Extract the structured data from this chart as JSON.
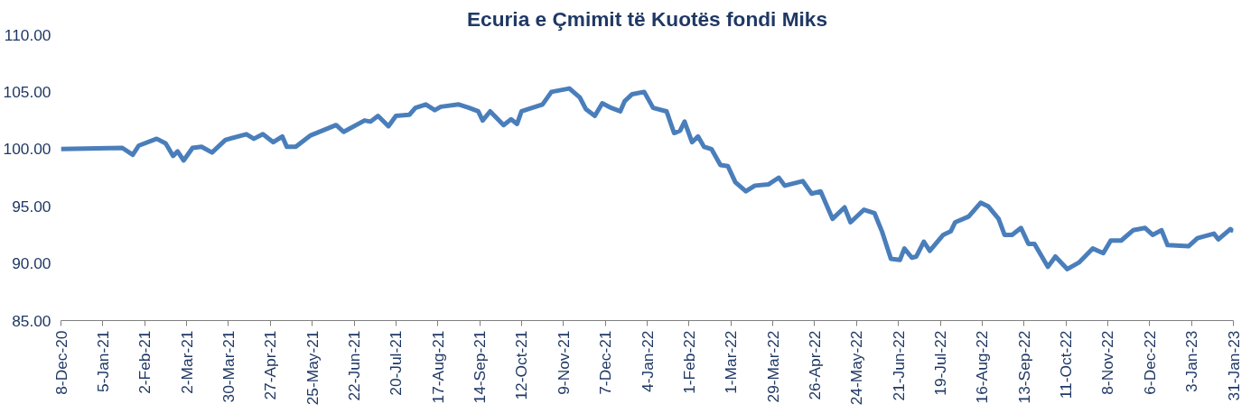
{
  "chart_data": {
    "type": "line",
    "title": "Ecuria e Çmimit të Kuotës fondi Miks",
    "x": [
      "2020-12-08",
      "2021-01-18",
      "2021-01-25",
      "2021-01-29",
      "2021-02-10",
      "2021-02-16",
      "2021-02-21",
      "2021-02-24",
      "2021-02-28",
      "2021-03-06",
      "2021-03-12",
      "2021-03-19",
      "2021-03-28",
      "2021-04-11",
      "2021-04-16",
      "2021-04-22",
      "2021-04-29",
      "2021-05-05",
      "2021-05-08",
      "2021-05-14",
      "2021-05-24",
      "2021-06-10",
      "2021-06-15",
      "2021-06-29",
      "2021-07-03",
      "2021-07-08",
      "2021-07-15",
      "2021-07-20",
      "2021-07-29",
      "2021-08-02",
      "2021-08-09",
      "2021-08-15",
      "2021-08-19",
      "2021-08-31",
      "2021-09-07",
      "2021-09-13",
      "2021-09-16",
      "2021-09-21",
      "2021-09-30",
      "2021-10-05",
      "2021-10-09",
      "2021-10-12",
      "2021-10-26",
      "2021-11-01",
      "2021-11-13",
      "2021-11-20",
      "2021-11-24",
      "2021-11-30",
      "2021-12-05",
      "2021-12-11",
      "2021-12-17",
      "2021-12-20",
      "2021-12-25",
      "2022-01-02",
      "2022-01-08",
      "2022-01-17",
      "2022-01-22",
      "2022-01-26",
      "2022-01-29",
      "2022-02-03",
      "2022-02-07",
      "2022-02-11",
      "2022-02-16",
      "2022-02-22",
      "2022-02-27",
      "2022-03-04",
      "2022-03-11",
      "2022-03-17",
      "2022-03-26",
      "2022-04-02",
      "2022-04-06",
      "2022-04-18",
      "2022-04-24",
      "2022-04-30",
      "2022-05-08",
      "2022-05-16",
      "2022-05-20",
      "2022-05-29",
      "2022-06-05",
      "2022-06-10",
      "2022-06-16",
      "2022-06-22",
      "2022-06-25",
      "2022-06-30",
      "2022-07-03",
      "2022-07-08",
      "2022-07-12",
      "2022-07-21",
      "2022-07-26",
      "2022-07-29",
      "2022-08-07",
      "2022-08-15",
      "2022-08-20",
      "2022-08-27",
      "2022-08-31",
      "2022-09-05",
      "2022-09-11",
      "2022-09-16",
      "2022-09-20",
      "2022-09-29",
      "2022-10-04",
      "2022-10-12",
      "2022-10-20",
      "2022-10-29",
      "2022-11-05",
      "2022-11-10",
      "2022-11-17",
      "2022-11-25",
      "2022-12-03",
      "2022-12-08",
      "2022-12-14",
      "2022-12-18",
      "2023-01-01",
      "2023-01-07",
      "2023-01-18",
      "2023-01-21",
      "2023-01-29",
      "2023-01-31"
    ],
    "series": [
      {
        "color": "#4a7ebb",
        "values": [
          100.0,
          100.1,
          99.5,
          100.3,
          100.9,
          100.5,
          99.4,
          99.8,
          99.0,
          100.1,
          100.2,
          99.7,
          100.8,
          101.3,
          100.9,
          101.3,
          100.6,
          101.1,
          100.2,
          100.2,
          101.2,
          102.1,
          101.5,
          102.5,
          102.4,
          102.9,
          102.0,
          102.9,
          103.0,
          103.6,
          103.9,
          103.4,
          103.7,
          103.9,
          103.6,
          103.3,
          102.5,
          103.3,
          102.1,
          102.6,
          102.2,
          103.3,
          103.9,
          105.0,
          105.3,
          104.5,
          103.5,
          102.9,
          104.0,
          103.6,
          103.3,
          104.2,
          104.8,
          105.0,
          103.6,
          103.3,
          101.4,
          101.6,
          102.4,
          100.6,
          101.1,
          100.2,
          100.0,
          98.6,
          98.5,
          97.1,
          96.3,
          96.8,
          96.9,
          97.5,
          96.8,
          97.2,
          96.1,
          96.3,
          93.9,
          94.9,
          93.6,
          94.7,
          94.4,
          92.8,
          90.4,
          90.3,
          91.3,
          90.5,
          90.6,
          91.9,
          91.1,
          92.5,
          92.8,
          93.6,
          94.1,
          95.3,
          95.0,
          93.9,
          92.5,
          92.5,
          93.1,
          91.7,
          91.7,
          89.7,
          90.6,
          89.5,
          90.1,
          91.3,
          90.9,
          92.0,
          92.0,
          92.9,
          93.1,
          92.5,
          92.9,
          91.6,
          91.5,
          92.2,
          92.6,
          92.1,
          93.0,
          92.8
        ]
      }
    ],
    "xlim": [
      "2020-12-08",
      "2023-01-31"
    ],
    "xticks": [
      {
        "value": "2020-12-08",
        "label": "8-Dec-20"
      },
      {
        "value": "2021-01-05",
        "label": "5-Jan-21"
      },
      {
        "value": "2021-02-02",
        "label": "2-Feb-21"
      },
      {
        "value": "2021-03-02",
        "label": "2-Mar-21"
      },
      {
        "value": "2021-03-30",
        "label": "30-Mar-21"
      },
      {
        "value": "2021-04-27",
        "label": "27-Apr-21"
      },
      {
        "value": "2021-05-25",
        "label": "25-May-21"
      },
      {
        "value": "2021-06-22",
        "label": "22-Jun-21"
      },
      {
        "value": "2021-07-20",
        "label": "20-Jul-21"
      },
      {
        "value": "2021-08-17",
        "label": "17-Aug-21"
      },
      {
        "value": "2021-09-14",
        "label": "14-Sep-21"
      },
      {
        "value": "2021-10-12",
        "label": "12-Oct-21"
      },
      {
        "value": "2021-11-09",
        "label": "9-Nov-21"
      },
      {
        "value": "2021-12-07",
        "label": "7-Dec-21"
      },
      {
        "value": "2022-01-04",
        "label": "4-Jan-22"
      },
      {
        "value": "2022-02-01",
        "label": "1-Feb-22"
      },
      {
        "value": "2022-03-01",
        "label": "1-Mar-22"
      },
      {
        "value": "2022-03-29",
        "label": "29-Mar-22"
      },
      {
        "value": "2022-04-26",
        "label": "26-Apr-22"
      },
      {
        "value": "2022-05-24",
        "label": "24-May-22"
      },
      {
        "value": "2022-06-21",
        "label": "21-Jun-22"
      },
      {
        "value": "2022-07-19",
        "label": "19-Jul-22"
      },
      {
        "value": "2022-08-16",
        "label": "16-Aug-22"
      },
      {
        "value": "2022-09-13",
        "label": "13-Sep-22"
      },
      {
        "value": "2022-10-11",
        "label": "11-Oct-22"
      },
      {
        "value": "2022-11-08",
        "label": "8-Nov-22"
      },
      {
        "value": "2022-12-06",
        "label": "6-Dec-22"
      },
      {
        "value": "2023-01-03",
        "label": "3-Jan-23"
      },
      {
        "value": "2023-01-31",
        "label": "31-Jan-23"
      }
    ],
    "ylim": [
      85,
      110
    ],
    "yticks": [
      {
        "value": 85,
        "label": "85.00"
      },
      {
        "value": 90,
        "label": "90.00"
      },
      {
        "value": 95,
        "label": "95.00"
      },
      {
        "value": 100,
        "label": "100.00"
      },
      {
        "value": 105,
        "label": "105.00"
      },
      {
        "value": 110,
        "label": "110.00"
      }
    ],
    "grid": false,
    "marker": "none",
    "line_style": "solid"
  }
}
